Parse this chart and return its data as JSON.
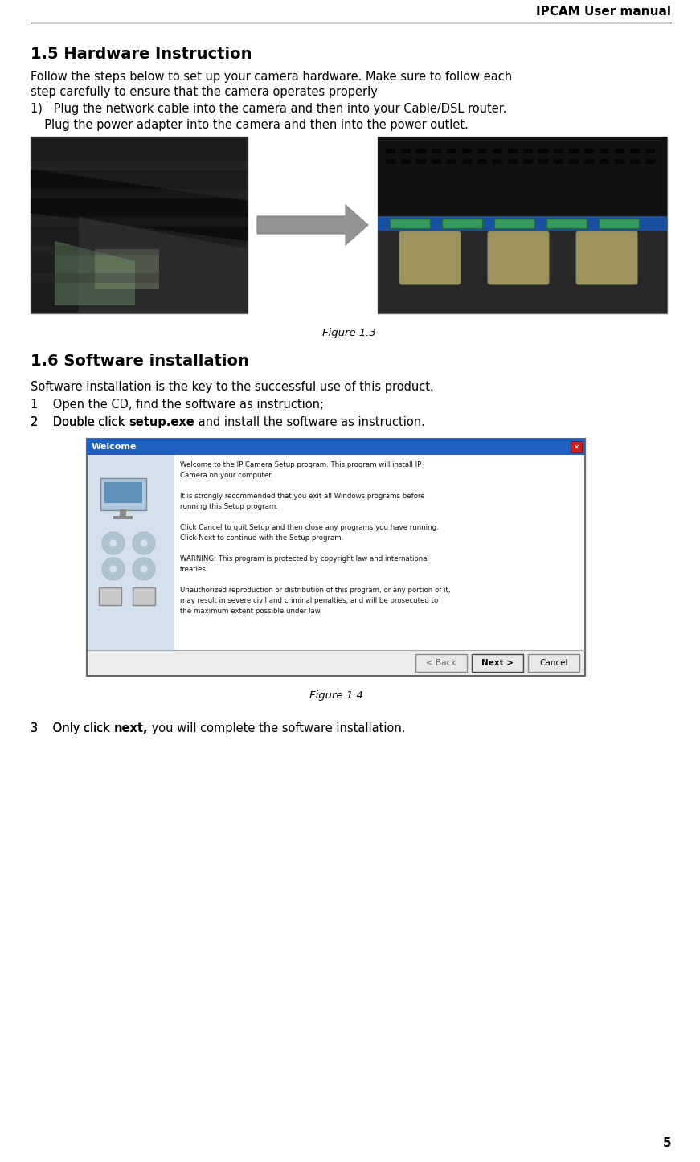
{
  "title_header": "IPCAM User manual",
  "section1_title": "1.5 Hardware Instruction",
  "body1_line1": "Follow the steps below to set up your camera hardware. Make sure to follow each",
  "body1_line2": "step carefully to ensure that the camera operates properly",
  "step1a": "1)   Plug the network cable into the camera and then into your Cable/DSL router.",
  "step1b": "  Plug the power adapter into the camera and then into the power outlet.",
  "fig1_caption": "Figure 1.3",
  "section2_title": "1.6 Software installation",
  "body2": "Software installation is the key to the successful use of this product.",
  "step2_1": "1    Open the CD, find the software as instruction;",
  "step2_2a": "2    Double click ",
  "step2_2b": "setup.exe",
  "step2_2c": " and install the software as instruction.",
  "fig2_caption": "Figure 1.4",
  "step2_3a": "3    Only click ",
  "step2_3b": "next,",
  "step2_3c": " you will complete the software installation.",
  "page_number": "5",
  "dialog_text_lines": [
    "Welcome to the IP Camera Setup program. This program will install IP",
    "Camera on your computer.",
    "",
    "It is strongly recommended that you exit all Windows programs before",
    "running this Setup program.",
    "",
    "Click Cancel to quit Setup and then close any programs you have running.",
    "Click Next to continue with the Setup program.",
    "",
    "WARNING: This program is protected by copyright law and international",
    "treaties.",
    "",
    "Unauthorized reproduction or distribution of this program, or any portion of it,",
    "may result in severe civil and criminal penalties, and will be prosecuted to",
    "the maximum extent possible under law."
  ]
}
